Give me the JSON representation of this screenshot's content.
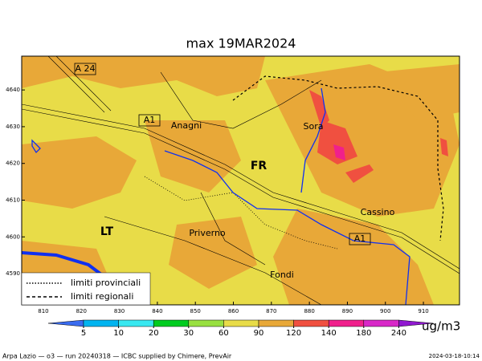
{
  "title": "max 19MAR2024",
  "map": {
    "xlim": [
      804.3,
      919.5
    ],
    "ylim": [
      4581.5,
      4649.2
    ],
    "xticks": [
      810,
      820,
      830,
      840,
      850,
      860,
      870,
      880,
      890,
      900,
      910
    ],
    "yticks": [
      4590,
      4600,
      4610,
      4620,
      4630,
      4640
    ],
    "places": [
      "A 24",
      "A1",
      "Anagni",
      "Sora",
      "FR",
      "Cassino",
      "LT",
      "Priverno",
      "A1",
      "Fondi"
    ]
  },
  "legend": {
    "items": [
      "limiti provinciali",
      "limiti regionali"
    ]
  },
  "colorbar": {
    "ticks": [
      5,
      10,
      20,
      30,
      60,
      90,
      120,
      140,
      180,
      240
    ],
    "colors": [
      "#3a6cf0",
      "#00b4f0",
      "#38e8f0",
      "#00cc20",
      "#98e040",
      "#e8dc48",
      "#e8a838",
      "#f05040",
      "#f0208c",
      "#d828c8",
      "#9018d0"
    ],
    "unit": "ug/m3"
  },
  "footer": {
    "left": "Arpa Lazio — o3 — run 20240318 — ICBC supplied by Chimere, PrevAir",
    "right": "2024-03-18-10:14"
  }
}
